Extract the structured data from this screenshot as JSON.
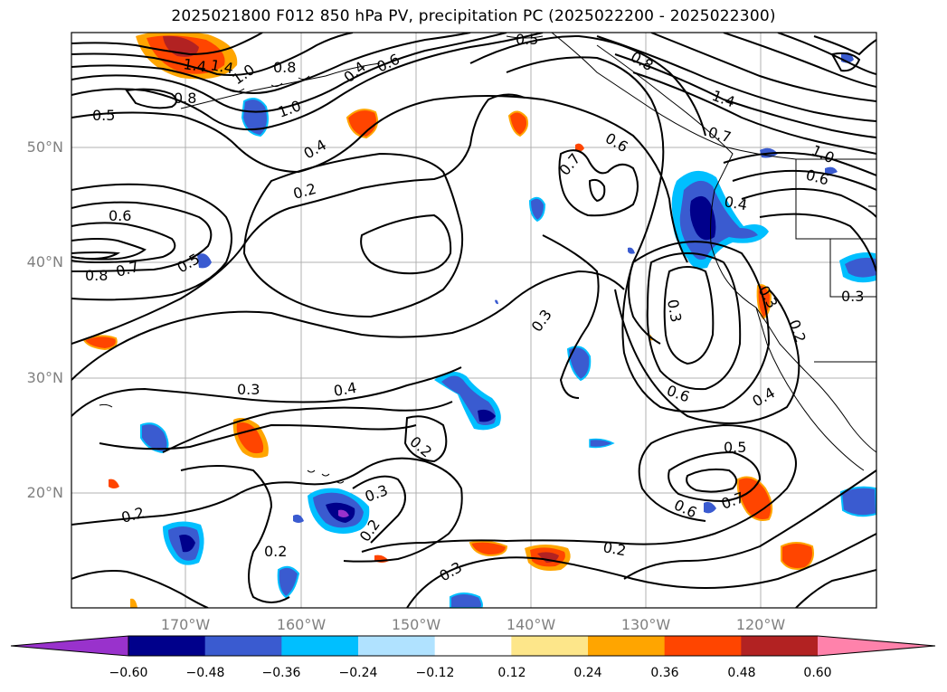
{
  "title": "2025021800 F012 850 hPa PV, precipitation PC (2025022200 - 2025022300)",
  "axes": {
    "lat_labels": [
      "50°N",
      "40°N",
      "30°N",
      "20°N"
    ],
    "lon_labels": [
      "170°W",
      "160°W",
      "150°W",
      "140°W",
      "130°W",
      "120°W"
    ]
  },
  "contour_labels": [
    "1.4",
    "1.0",
    "0.8",
    "1.4",
    "0.8",
    "1.0",
    "0.5",
    "0.4",
    "0.6",
    "0.5",
    "0.8",
    "1.4",
    "0.7",
    "1.0",
    "0.6",
    "0.4",
    "0.2",
    "0.7",
    "0.6",
    "0.4",
    "0.6",
    "0.8",
    "0.7",
    "0.5",
    "0.3",
    "0.3",
    "0.4",
    "0.3",
    "0.3",
    "0.2",
    "0.3",
    "0.2",
    "0.2",
    "0.2",
    "0.3",
    "0.2",
    "0.6",
    "0.4",
    "0.5",
    "0.6",
    "0.7",
    "0.2",
    "0.3"
  ],
  "colorbar": {
    "ticks": [
      "−0.60",
      "−0.48",
      "−0.36",
      "−0.24",
      "−0.12",
      "0.12",
      "0.24",
      "0.36",
      "0.48",
      "0.60"
    ],
    "colors": [
      "#9932cc",
      "#00008b",
      "#3a5bd0",
      "#00bfff",
      "#b0e2ff",
      "#ffffff",
      "#fde68a",
      "#ffa500",
      "#ff4500",
      "#b22222",
      "#ff82ab"
    ]
  }
}
